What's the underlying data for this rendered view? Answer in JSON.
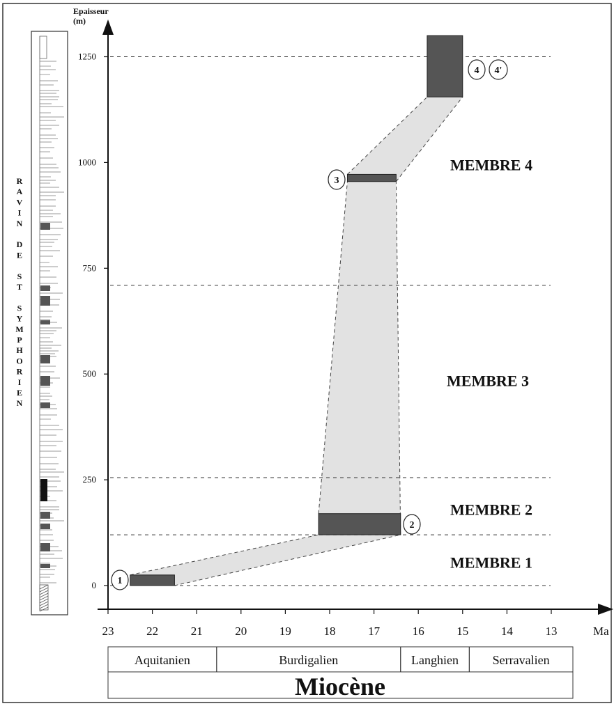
{
  "chart_data": {
    "type": "age-depth",
    "y_axis": {
      "label_line1": "Epaisseur",
      "label_line2": "(m)",
      "min": -70,
      "max": 1330,
      "ticks": [
        0,
        250,
        500,
        750,
        1000,
        1250
      ]
    },
    "x_axis": {
      "label": "Ma",
      "min": 23,
      "max": 12.5,
      "ticks": [
        23,
        22,
        21,
        20,
        19,
        18,
        17,
        16,
        15,
        14,
        13
      ]
    },
    "member_boundaries": [
      0,
      120,
      255,
      710,
      1250
    ],
    "members": [
      {
        "label": "MEMBRE 1",
        "y": 55
      },
      {
        "label": "MEMBRE 2",
        "y": 180
      },
      {
        "label": "MEMBRE 3",
        "y": 485
      },
      {
        "label": "MEMBRE 4",
        "y": 995
      }
    ],
    "age_boxes": [
      {
        "id": "1",
        "age_old": 22.5,
        "age_young": 21.5,
        "thick_bottom": 0,
        "thick_top": 25
      },
      {
        "id": "2",
        "age_old": 18.25,
        "age_young": 16.4,
        "thick_bottom": 120,
        "thick_top": 170
      },
      {
        "id": "3",
        "age_old": 17.6,
        "age_young": 16.5,
        "thick_bottom": 955,
        "thick_top": 972
      },
      {
        "id": "4",
        "age_old": 15.8,
        "age_young": 15.0,
        "thick_bottom": 1155,
        "thick_top": 1300
      }
    ],
    "point_labels": [
      "1",
      "2",
      "3",
      "4",
      "4'"
    ],
    "stages": [
      {
        "label": "Aquitanien",
        "from": 23,
        "to": 20.55
      },
      {
        "label": "Burdigalien",
        "from": 20.55,
        "to": 16.4
      },
      {
        "label": "Langhien",
        "from": 16.4,
        "to": 14.85
      },
      {
        "label": "Serravalien",
        "from": 14.85,
        "to": 12.5
      }
    ],
    "epoch": "Miocène",
    "section_label": [
      "R",
      "A",
      "V",
      "I",
      "N",
      "",
      "D",
      "E",
      "",
      "S",
      "T",
      "",
      "S",
      "Y",
      "M",
      "P",
      "H",
      "O",
      "R",
      "I",
      "E",
      "N"
    ]
  },
  "colors": {
    "box": "#555555",
    "band": "#e2e2e2",
    "line": "#222222"
  }
}
